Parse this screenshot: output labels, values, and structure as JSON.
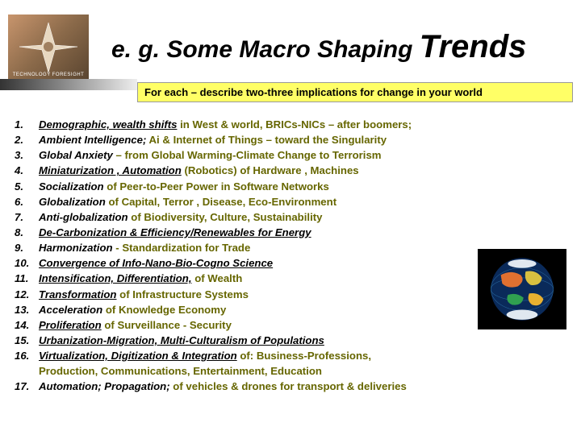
{
  "title_prefix": "e. g. Some Macro Shaping ",
  "title_big": "Trends",
  "logo_caption": "TECHNOLOGY FORESIGHT",
  "yellow_bar": "For each – describe two-three implications for change in your world",
  "items": [
    {
      "lead": "Demographic, wealth shifts",
      "underline": true,
      "tail": " in West & world, BRICs-NICs – after boomers;"
    },
    {
      "lead": "Ambient Intelligence;",
      "underline": false,
      "tail": " Ai  & Internet of Things – toward the Singularity"
    },
    {
      "lead": "Global Anxiety",
      "underline": false,
      "tail": " – from Global Warming-Climate Change to Terrorism"
    },
    {
      "lead": "Miniaturization , Automation",
      "underline": true,
      "tail": "  (Robotics) of  Hardware , Machines"
    },
    {
      "lead": "Socialization",
      "underline": false,
      "tail": " of Peer-to-Peer  Power in Software Networks"
    },
    {
      "lead": "Globalization",
      "underline": false,
      "tail": " of Capital, Terror , Disease, Eco-Environment"
    },
    {
      "lead": "Anti-globalization",
      "underline": false,
      "tail": " of Biodiversity, Culture, Sustainability"
    },
    {
      "lead": "De-Carbonization & Efficiency/Renewables for Energy",
      "underline": true,
      "tail": ""
    },
    {
      "lead": "Harmonization",
      "underline": false,
      "tail": " - Standardization for Trade"
    },
    {
      "lead": "Convergence of Info-Nano-Bio-Cogno Science",
      "underline": true,
      "tail": ""
    },
    {
      "lead": "Intensification, Differentiation,",
      "underline": true,
      "tail": " of Wealth"
    },
    {
      "lead": "Transformation",
      "underline": true,
      "tail": " of Infrastructure Systems"
    },
    {
      "lead": "Acceleration",
      "underline": false,
      "tail": " of Knowledge Economy"
    },
    {
      "lead": "Proliferation",
      "underline": true,
      "tail": " of Surveillance - Security"
    },
    {
      "lead": "Urbanization-Migration, Multi-Culturalism of Populations",
      "underline": true,
      "tail": ""
    },
    {
      "lead": "Virtualization, Digitization & Integration",
      "underline": true,
      "tail": " of: Business-Professions,",
      "sub": "Production, Communications, Entertainment, Education"
    },
    {
      "lead": "Automation; Propagation;",
      "underline": false,
      "tail": " of vehicles & drones for transport & deliveries"
    }
  ],
  "colors": {
    "accent": "#666600",
    "yellow": "#ffff66"
  }
}
